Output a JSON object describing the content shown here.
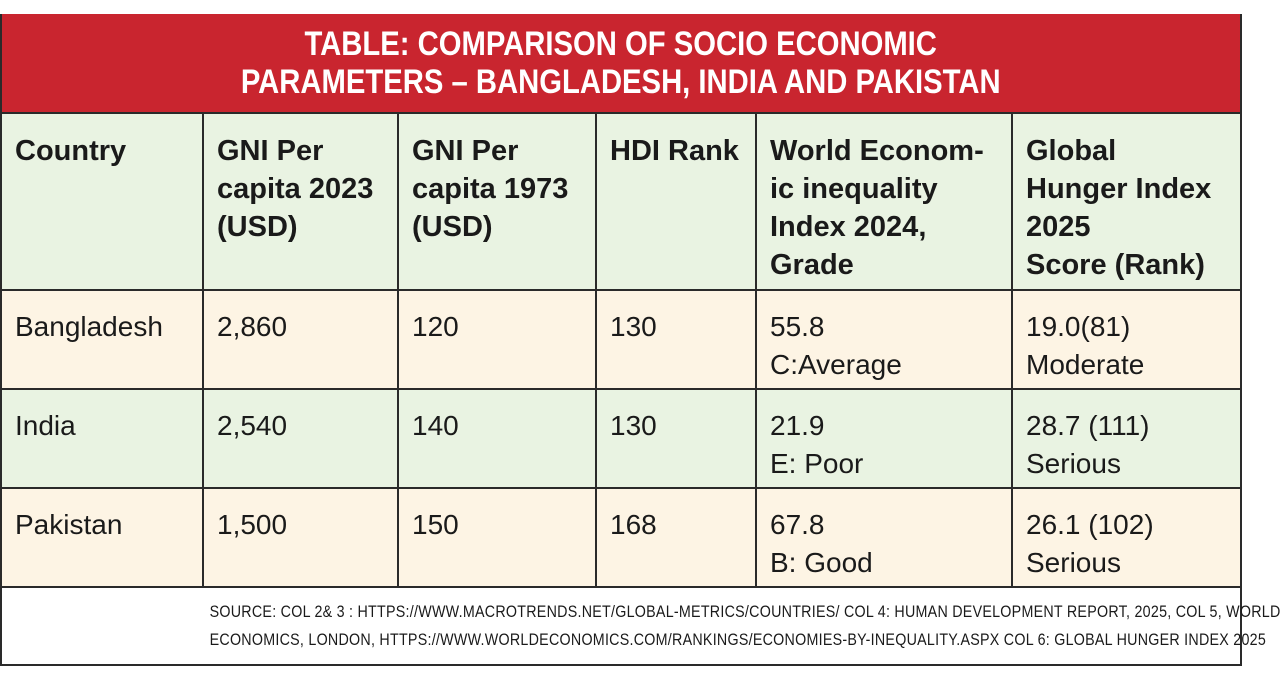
{
  "title": {
    "line1": "TABLE: COMPARISON OF SOCIO ECONOMIC",
    "line2": "PARAMETERS – BANGLADESH, INDIA AND PAKISTAN"
  },
  "colors": {
    "banner": "#c9252f",
    "header_bg": "#e9f3e2",
    "row_alt_bg": "#fdf4e4"
  },
  "table": {
    "headers": [
      [
        "Country"
      ],
      [
        "GNI Per",
        "capita 2023",
        "(USD)"
      ],
      [
        "GNI Per",
        "capita 1973",
        "(USD)"
      ],
      [
        "HDI Rank"
      ],
      [
        "World Econom-",
        "ic inequality",
        "Index 2024,",
        "Grade"
      ],
      [
        "Global",
        "Hunger Index",
        "2025",
        "Score (Rank)"
      ]
    ],
    "rows": [
      {
        "country": "Bangladesh",
        "gni_2023": "2,860",
        "gni_1973": "120",
        "hdi_rank": "130",
        "wei_score": "55.8",
        "wei_grade": "C:Average",
        "ghi_score": "19.0(81)",
        "ghi_level": "Moderate"
      },
      {
        "country": "India",
        "gni_2023": "2,540",
        "gni_1973": "140",
        "hdi_rank": "130",
        "wei_score": "21.9",
        "wei_grade": "E: Poor",
        "ghi_score": "28.7 (111)",
        "ghi_level": "Serious"
      },
      {
        "country": "Pakistan",
        "gni_2023": "1,500",
        "gni_1973": "150",
        "hdi_rank": "168",
        "wei_score": "67.8",
        "wei_grade": "B: Good",
        "ghi_score": "26.1 (102)",
        "ghi_level": "Serious"
      }
    ]
  },
  "source": {
    "line1": "SOURCE: COL 2& 3 : HTTPS://WWW.MACROTRENDS.NET/GLOBAL-METRICS/COUNTRIES/  COL 4: HUMAN DEVELOPMENT REPORT,  2025, COL 5, WORLD",
    "line2": "ECONOMICS, LONDON, HTTPS://WWW.WORLDECONOMICS.COM/RANKINGS/ECONOMIES-BY-INEQUALITY.ASPX COL 6:  GLOBAL HUNGER INDEX 2025"
  }
}
